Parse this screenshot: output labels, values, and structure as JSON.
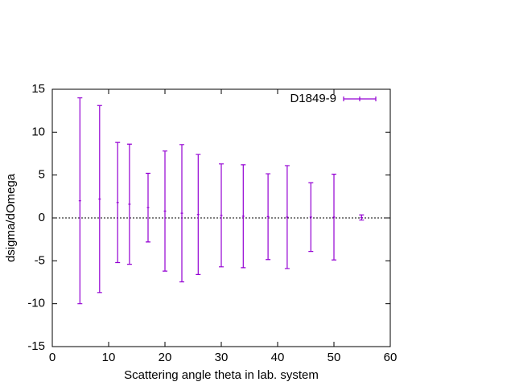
{
  "chart_data": {
    "type": "scatter",
    "xlabel": "Scattering angle theta in lab. system",
    "ylabel": "dsigma/dOmega",
    "x": [
      4.9,
      8.4,
      11.6,
      13.7,
      17.0,
      20.0,
      23.0,
      25.9,
      30.0,
      33.9,
      38.3,
      41.7,
      45.9,
      50.0,
      54.9
    ],
    "series": [
      {
        "name": "D1849-9",
        "color": "#9400d3",
        "values": [
          2.0,
          2.2,
          1.8,
          1.6,
          1.2,
          0.8,
          0.55,
          0.4,
          0.3,
          0.2,
          0.15,
          0.1,
          0.1,
          0.1,
          0.05
        ],
        "errors": [
          12.0,
          10.9,
          7.0,
          7.0,
          4.0,
          7.0,
          8.0,
          7.0,
          6.0,
          6.0,
          5.0,
          6.0,
          4.0,
          5.0,
          0.3
        ]
      }
    ],
    "xlim": [
      0,
      60
    ],
    "ylim": [
      -15,
      15
    ],
    "xticks": [
      0,
      10,
      20,
      30,
      40,
      50,
      60
    ],
    "yticks": [
      -15,
      -10,
      -5,
      0,
      5,
      10,
      15
    ],
    "legend": "top-right",
    "zero_line": true
  }
}
